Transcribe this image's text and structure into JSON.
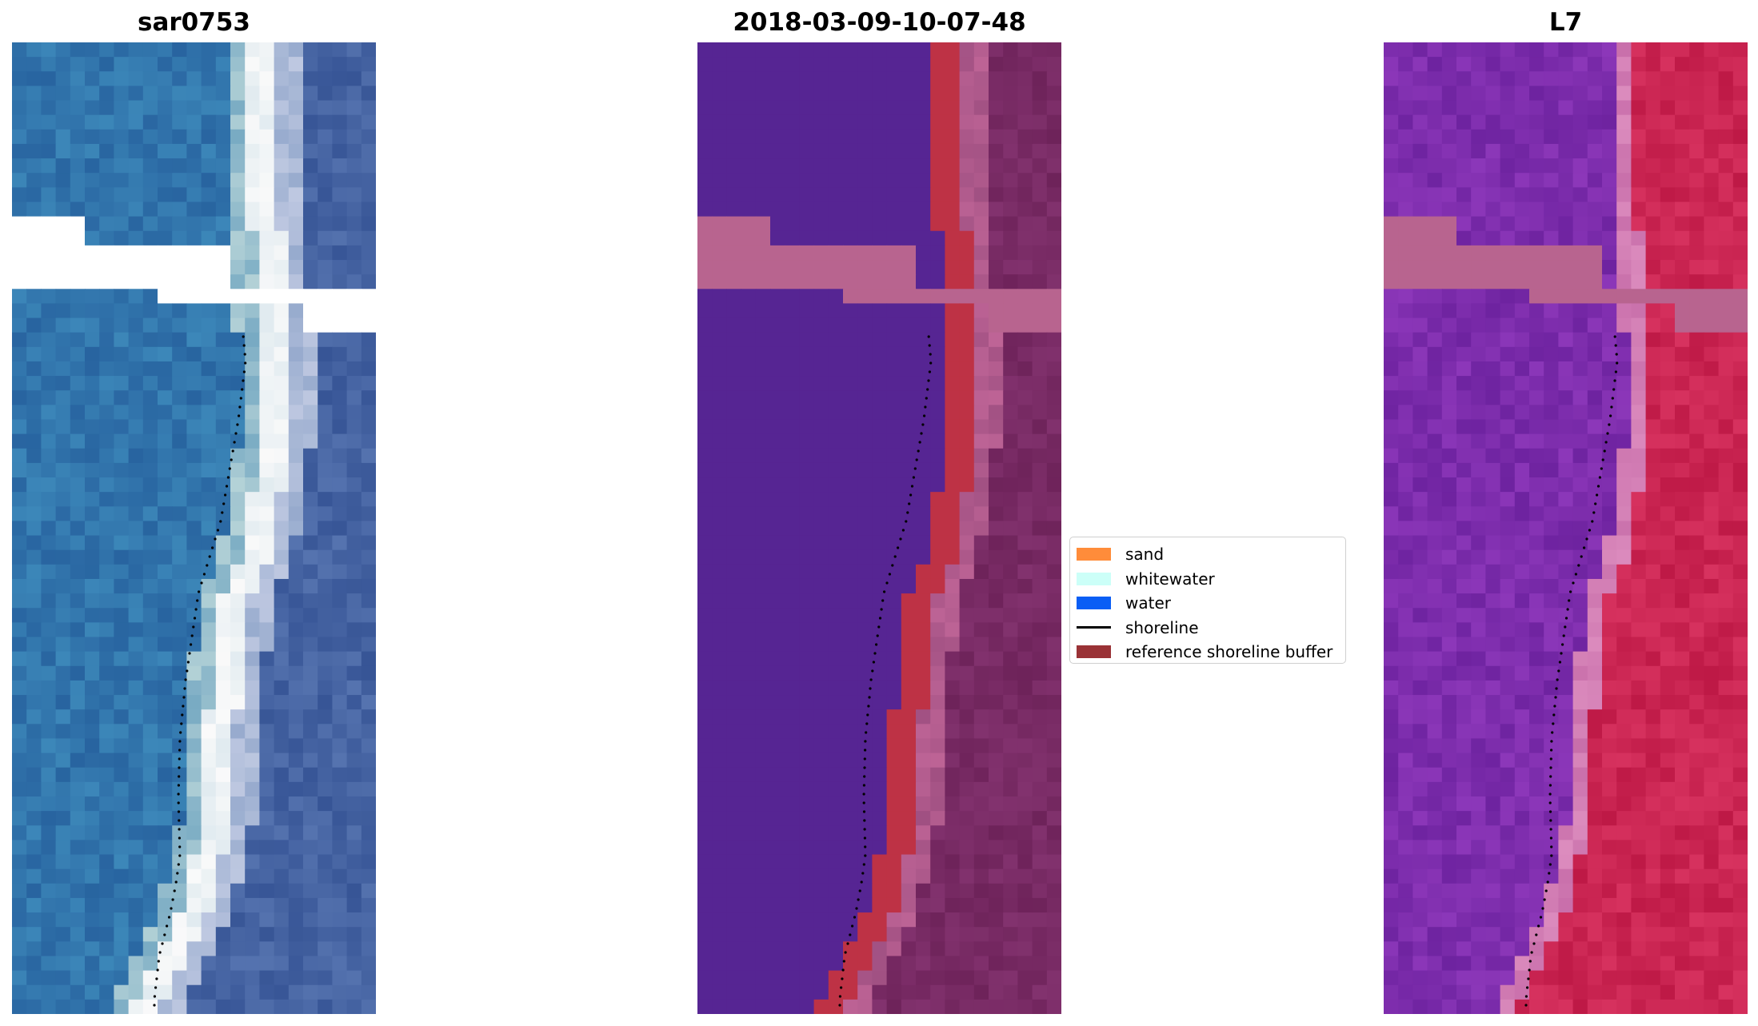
{
  "panels": [
    {
      "title": "sar0753",
      "palette": "rgb"
    },
    {
      "title": "2018-03-09-10-07-48",
      "palette": "classified"
    },
    {
      "title": "L7",
      "palette": "falsecolor"
    }
  ],
  "legend": {
    "items": [
      {
        "label": "sand",
        "color": "#ff8c3a",
        "kind": "patch"
      },
      {
        "label": "whitewater",
        "color": "#ccfff8",
        "kind": "patch"
      },
      {
        "label": "water",
        "color": "#0a5ef5",
        "kind": "patch"
      },
      {
        "label": "shoreline",
        "color": "#000000",
        "kind": "line"
      },
      {
        "label": "reference shoreline buffer",
        "color": "#9a3236",
        "kind": "patch"
      }
    ]
  },
  "colors": {
    "nodata": "#ffffff",
    "cloud_mask": "#b8648f",
    "classified_water": "#562593",
    "reference_buffer": "#be3245",
    "shoreline_dots": "#000000"
  }
}
